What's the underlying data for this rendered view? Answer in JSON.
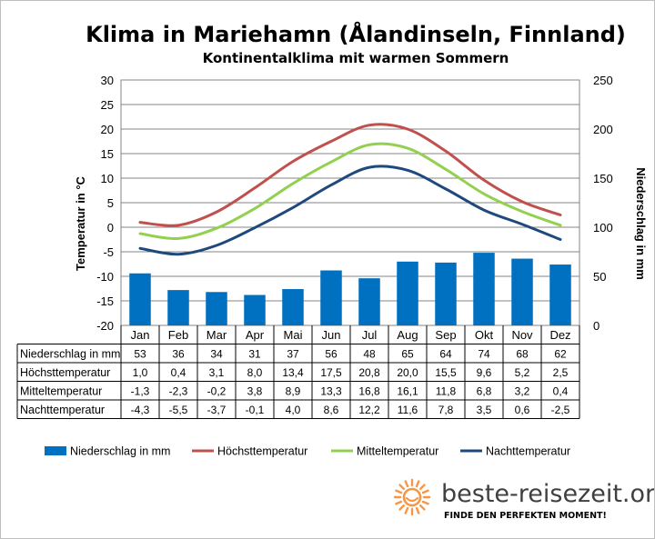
{
  "chart_data": {
    "type": "bar",
    "title": "Klima in Mariehamn (Ålandinseln, Finnland)",
    "subtitle": "Kontinentalklima  mit  warmen  Sommern",
    "categories": [
      "Jan",
      "Feb",
      "Mar",
      "Apr",
      "Mai",
      "Jun",
      "Jul",
      "Aug",
      "Sep",
      "Okt",
      "Nov",
      "Dez"
    ],
    "ylabel_left": "Temperatur in °C",
    "ylabel_right": "Niederschlag in mm",
    "ylim_left": [
      -20,
      30
    ],
    "yticks_left": [
      -20,
      -15,
      -10,
      -5,
      0,
      5,
      10,
      15,
      20,
      25,
      30
    ],
    "ylim_right": [
      0,
      250
    ],
    "yticks_right": [
      0,
      50,
      100,
      150,
      200,
      250
    ],
    "series": [
      {
        "name": "Niederschlag in mm",
        "kind": "bar",
        "axis": "right",
        "color": "#0070c0",
        "values": [
          53,
          36,
          34,
          31,
          37,
          56,
          48,
          65,
          64,
          74,
          68,
          62
        ],
        "labels": [
          "53",
          "36",
          "34",
          "31",
          "37",
          "56",
          "48",
          "65",
          "64",
          "74",
          "68",
          "62"
        ]
      },
      {
        "name": "Höchsttemperatur",
        "kind": "line",
        "axis": "left",
        "color": "#c0504d",
        "values": [
          1.0,
          0.4,
          3.1,
          8.0,
          13.4,
          17.5,
          20.8,
          20.0,
          15.5,
          9.6,
          5.2,
          2.5
        ],
        "labels": [
          "1,0",
          "0,4",
          "3,1",
          "8,0",
          "13,4",
          "17,5",
          "20,8",
          "20,0",
          "15,5",
          "9,6",
          "5,2",
          "2,5"
        ]
      },
      {
        "name": "Mitteltemperatur",
        "kind": "line",
        "axis": "left",
        "color": "#92d050",
        "values": [
          -1.3,
          -2.3,
          -0.2,
          3.8,
          8.9,
          13.3,
          16.8,
          16.1,
          11.8,
          6.8,
          3.2,
          0.4
        ],
        "labels": [
          "-1,3",
          "-2,3",
          "-0,2",
          "3,8",
          "8,9",
          "13,3",
          "16,8",
          "16,1",
          "11,8",
          "6,8",
          "3,2",
          "0,4"
        ]
      },
      {
        "name": "Nachttemperatur",
        "kind": "line",
        "axis": "left",
        "color": "#1f497d",
        "values": [
          -4.3,
          -5.5,
          -3.7,
          -0.1,
          4.0,
          8.6,
          12.2,
          11.6,
          7.8,
          3.5,
          0.6,
          -2.5
        ],
        "labels": [
          "-4,3",
          "-5,5",
          "-3,7",
          "-0,1",
          "4,0",
          "8,6",
          "12,2",
          "11,6",
          "7,8",
          "3,5",
          "0,6",
          "-2,5"
        ]
      }
    ],
    "legend_position": "bottom",
    "grid": true
  },
  "brand": {
    "name": "beste-reisezeit.org",
    "tagline": "FINDE DEN PERFEKTEN MOMENT!",
    "sun_color": "#f79646"
  }
}
